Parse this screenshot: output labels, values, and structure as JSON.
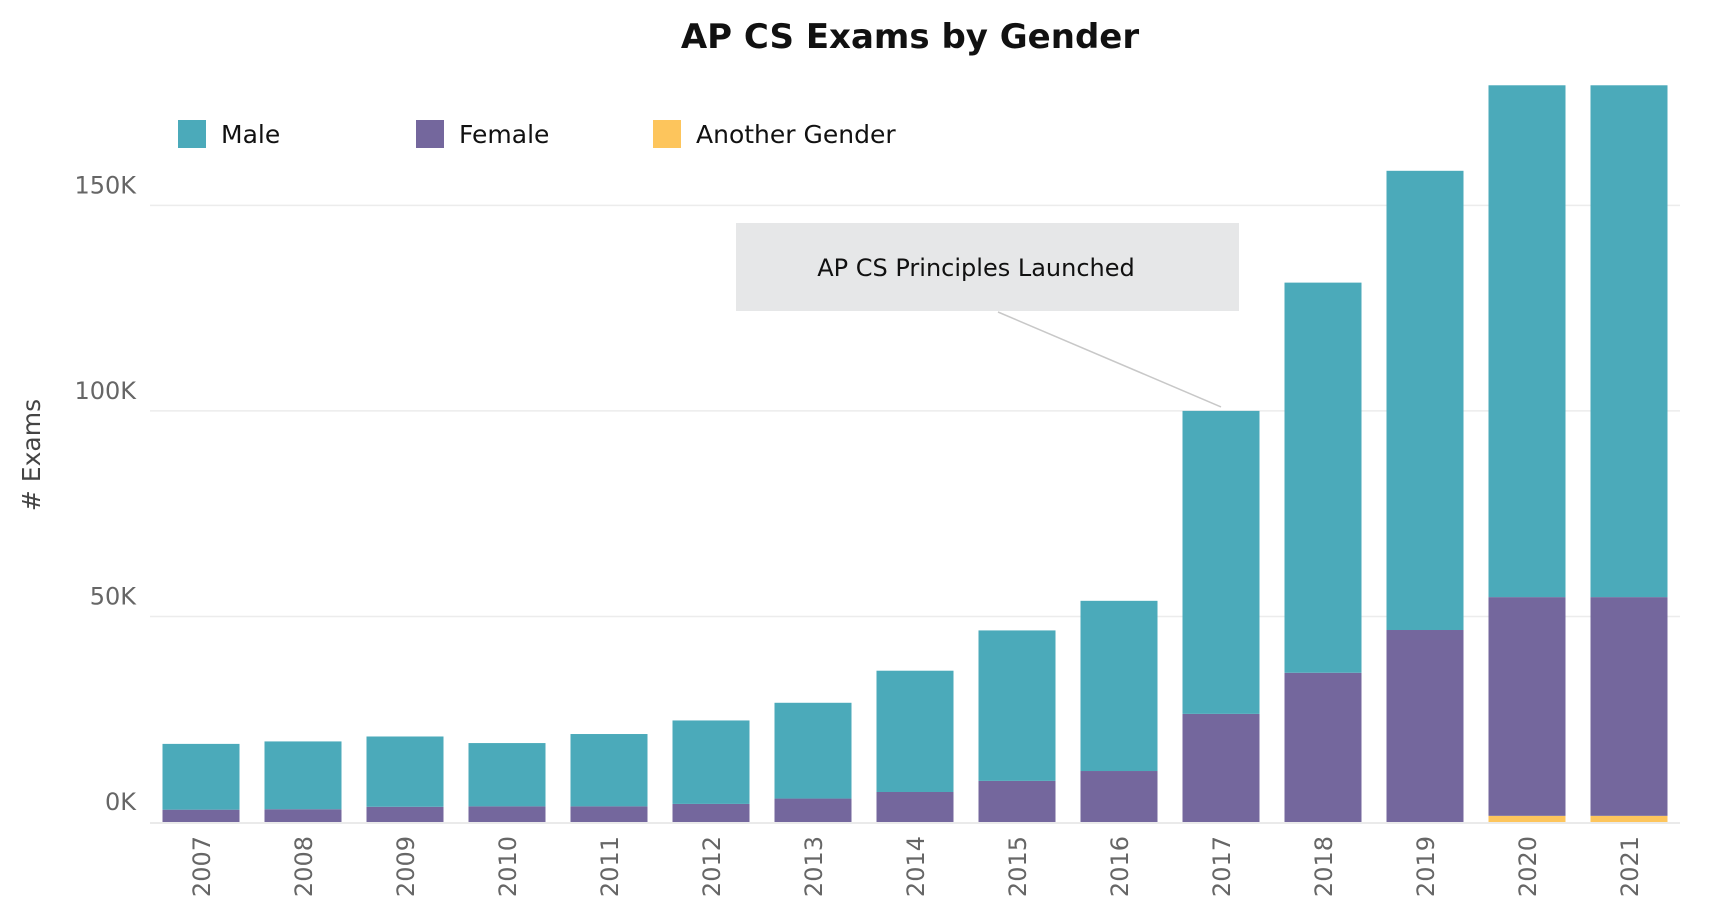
{
  "chart_data": {
    "type": "bar",
    "stacked": true,
    "title": "AP CS Exams by Gender",
    "xlabel": "",
    "ylabel": "# Exams",
    "ylim": [
      0,
      180000
    ],
    "yticks": [
      {
        "value": 0,
        "label": "0K"
      },
      {
        "value": 50000,
        "label": "50K"
      },
      {
        "value": 100000,
        "label": "100K"
      },
      {
        "value": 150000,
        "label": "150K"
      }
    ],
    "grid": true,
    "legend_position": "top-left",
    "categories": [
      "2007",
      "2008",
      "2009",
      "2010",
      "2011",
      "2012",
      "2013",
      "2014",
      "2015",
      "2016",
      "2017",
      "2018",
      "2019",
      "2020",
      "2021"
    ],
    "series": [
      {
        "name": "Another Gender",
        "color": "#FDC55C",
        "values": [
          0,
          0,
          0,
          0,
          0,
          0,
          0,
          0,
          0,
          0,
          0,
          0,
          0,
          1500,
          1500
        ]
      },
      {
        "name": "Female",
        "color": "#74679D",
        "values": [
          3000,
          3100,
          3700,
          3800,
          3800,
          4400,
          5700,
          7300,
          10000,
          12400,
          26300,
          36300,
          46700,
          53200,
          53200
        ]
      },
      {
        "name": "Male",
        "color": "#4BAABA",
        "values": [
          16000,
          16500,
          17100,
          15400,
          17600,
          20300,
          23300,
          29500,
          36600,
          41400,
          73700,
          94900,
          111700,
          124500,
          124500
        ]
      }
    ],
    "legend_order": [
      "Male",
      "Female",
      "Another Gender"
    ],
    "annotation": {
      "text": "AP CS Principles Launched",
      "category": "2017"
    }
  }
}
